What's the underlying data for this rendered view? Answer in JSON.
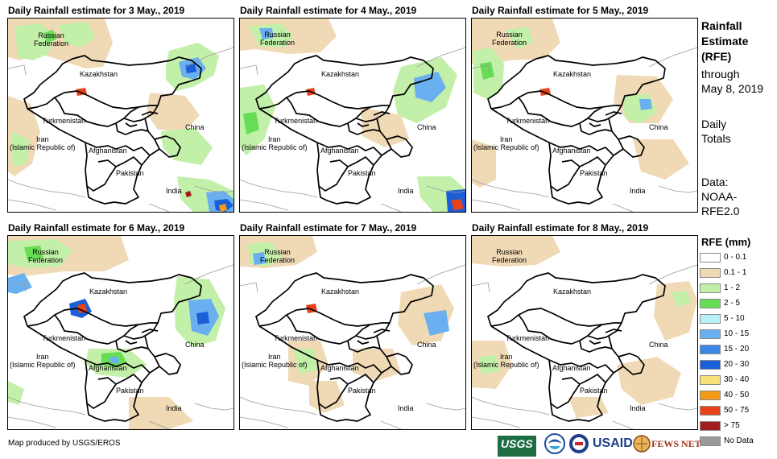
{
  "panels": [
    {
      "title": "Daily Rainfall estimate for 3 May., 2019"
    },
    {
      "title": "Daily Rainfall estimate for 4 May., 2019"
    },
    {
      "title": "Daily Rainfall estimate for 5 May., 2019"
    },
    {
      "title": "Daily Rainfall estimate for 6 May., 2019"
    },
    {
      "title": "Daily Rainfall estimate for 7 May., 2019"
    },
    {
      "title": "Daily Rainfall estimate for 8 May., 2019"
    }
  ],
  "map_labels": {
    "russia_line1": "Russian",
    "russia_line2": "Federation",
    "kazakhstan": "Kazakhstan",
    "turkmenistan": "Turkmenistan",
    "iran_line1": "Iran",
    "iran_line2": "(Islamic Republic of)",
    "afghanistan": "Afghanistan",
    "pakistan": "Pakistan",
    "china": "China",
    "india": "India"
  },
  "sidebar": {
    "title_line1": "Rainfall",
    "title_line2": "Estimate",
    "title_line3": "(RFE)",
    "through_line1": "through",
    "through_line2": "May 8, 2019",
    "totals_line1": "Daily",
    "totals_line2": "Totals",
    "data_line1": "Data:",
    "data_line2": "NOAA-",
    "data_line3": "RFE2.0"
  },
  "legend": {
    "title": "RFE (mm)",
    "items": [
      {
        "label": "0 - 0.1",
        "color": "#ffffff"
      },
      {
        "label": "0.1 - 1",
        "color": "#f0d9b5"
      },
      {
        "label": "1 - 2",
        "color": "#c2f0a8"
      },
      {
        "label": "2 - 5",
        "color": "#66dd55"
      },
      {
        "label": "5 - 10",
        "color": "#b8f2f8"
      },
      {
        "label": "10 - 15",
        "color": "#6aaff0"
      },
      {
        "label": "15 - 20",
        "color": "#3c86e6"
      },
      {
        "label": "20 - 30",
        "color": "#1a5ed8"
      },
      {
        "label": "30 - 40",
        "color": "#f8e278"
      },
      {
        "label": "40 - 50",
        "color": "#f39a1a"
      },
      {
        "label": "50 - 75",
        "color": "#e8421a"
      },
      {
        "label": "> 75",
        "color": "#a01e1e"
      },
      {
        "label": "No Data",
        "color": "#9a9a9a"
      }
    ]
  },
  "footer": {
    "credit": "Map produced by USGS/EROS"
  },
  "logos": {
    "usgs": "USGS",
    "usaid": "USAID",
    "fewsnet": "FEWS NET"
  }
}
